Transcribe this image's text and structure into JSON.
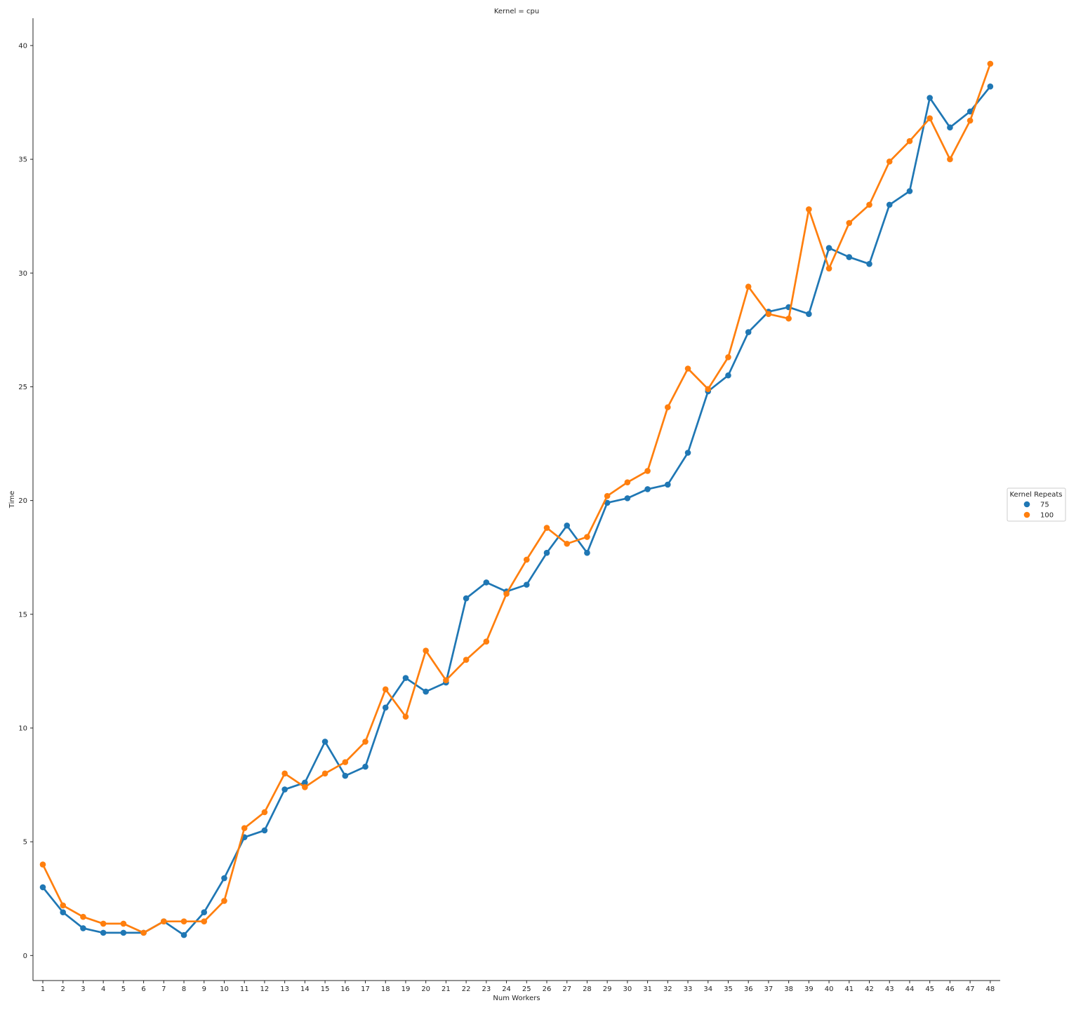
{
  "chart_data": {
    "type": "line",
    "title": "Kernel = cpu",
    "xlabel": "Num Workers",
    "ylabel": "Time",
    "ylim": [
      -1.1,
      41.2
    ],
    "yticks": [
      0,
      5,
      10,
      15,
      20,
      25,
      30,
      35,
      40
    ],
    "categories": [
      "1",
      "2",
      "3",
      "4",
      "5",
      "6",
      "7",
      "8",
      "9",
      "10",
      "11",
      "12",
      "13",
      "14",
      "15",
      "16",
      "17",
      "18",
      "19",
      "20",
      "21",
      "22",
      "23",
      "24",
      "25",
      "26",
      "27",
      "28",
      "29",
      "30",
      "31",
      "32",
      "33",
      "34",
      "35",
      "36",
      "37",
      "38",
      "39",
      "40",
      "41",
      "42",
      "43",
      "44",
      "45",
      "46",
      "47",
      "48"
    ],
    "legend": {
      "title": "Kernel Repeats",
      "position": "center-right"
    },
    "grid": false,
    "series": [
      {
        "name": "75",
        "color": "#1f77b4",
        "values": [
          3.0,
          1.9,
          1.2,
          1.0,
          1.0,
          1.0,
          1.5,
          0.9,
          1.9,
          3.4,
          5.2,
          5.5,
          7.3,
          7.6,
          9.4,
          7.9,
          8.3,
          10.9,
          12.2,
          11.6,
          12.0,
          15.7,
          16.4,
          16.0,
          16.3,
          17.7,
          18.9,
          17.7,
          19.9,
          20.1,
          20.5,
          20.7,
          22.1,
          24.8,
          25.5,
          27.4,
          28.3,
          28.5,
          28.2,
          31.1,
          30.7,
          30.4,
          33.0,
          33.6,
          37.7,
          36.4,
          37.1,
          38.2
        ]
      },
      {
        "name": "100",
        "color": "#ff7f0e",
        "values": [
          4.0,
          2.2,
          1.7,
          1.4,
          1.4,
          1.0,
          1.5,
          1.5,
          1.5,
          2.4,
          5.6,
          6.3,
          8.0,
          7.4,
          8.0,
          8.5,
          9.4,
          11.7,
          10.5,
          13.4,
          12.1,
          13.0,
          13.8,
          15.9,
          17.4,
          18.8,
          18.1,
          18.4,
          20.2,
          20.8,
          21.3,
          24.1,
          25.8,
          24.9,
          26.3,
          29.4,
          28.2,
          28.0,
          32.8,
          30.2,
          32.2,
          33.0,
          34.9,
          35.8,
          36.8,
          35.0,
          36.7,
          39.2
        ]
      }
    ]
  }
}
